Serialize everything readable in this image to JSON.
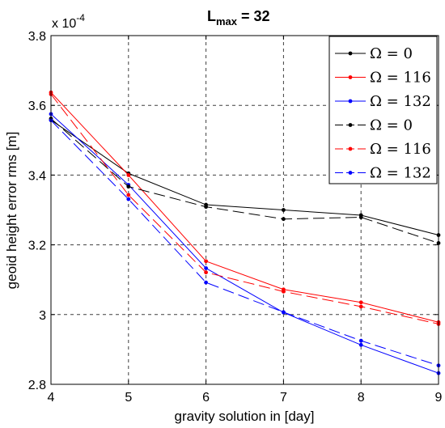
{
  "chart_data": {
    "type": "line",
    "title": "L",
    "title_subscript": "max",
    "title_suffix": " = 32",
    "xlabel": "gravity solution in [day]",
    "ylabel": "geoid height error rms [m]",
    "exponent_label_prefix": "x 10",
    "exponent_label_power": "-4",
    "xlim": [
      4,
      9
    ],
    "ylim": [
      2.8,
      3.8
    ],
    "x_ticks": [
      4,
      5,
      6,
      7,
      8,
      9
    ],
    "x_tick_labels": [
      "4",
      "5",
      "6",
      "7",
      "8",
      "9"
    ],
    "y_ticks": [
      2.8,
      3.0,
      3.2,
      3.4,
      3.6,
      3.8
    ],
    "y_tick_labels": [
      "2.8",
      "3",
      "3.2",
      "3.4",
      "3.6",
      "3.8"
    ],
    "grid": true,
    "grid_color": "#000000",
    "legend_position": "top-right",
    "x": [
      4,
      5,
      6,
      7,
      8,
      9
    ],
    "series": [
      {
        "name": "Ω = 0",
        "color": "#000000",
        "dash": "solid",
        "values": [
          3.558,
          3.405,
          3.315,
          3.3,
          3.285,
          3.228
        ]
      },
      {
        "name": "Ω = 116",
        "color": "#ff0000",
        "dash": "solid",
        "values": [
          3.637,
          3.4,
          3.153,
          3.072,
          3.035,
          2.978
        ]
      },
      {
        "name": "Ω = 132",
        "color": "#0000ff",
        "dash": "solid",
        "values": [
          3.575,
          3.372,
          3.133,
          3.006,
          2.913,
          2.832
        ]
      },
      {
        "name": "Ω = 0",
        "color": "#000000",
        "dash": "dashed",
        "values": [
          3.562,
          3.367,
          3.309,
          3.274,
          3.279,
          3.205
        ]
      },
      {
        "name": "Ω = 116",
        "color": "#ff0000",
        "dash": "dashed",
        "values": [
          3.632,
          3.343,
          3.121,
          3.066,
          3.023,
          2.973
        ]
      },
      {
        "name": "Ω = 132",
        "color": "#0000ff",
        "dash": "dashed",
        "values": [
          3.557,
          3.331,
          3.092,
          3.007,
          2.925,
          2.854
        ]
      }
    ]
  }
}
